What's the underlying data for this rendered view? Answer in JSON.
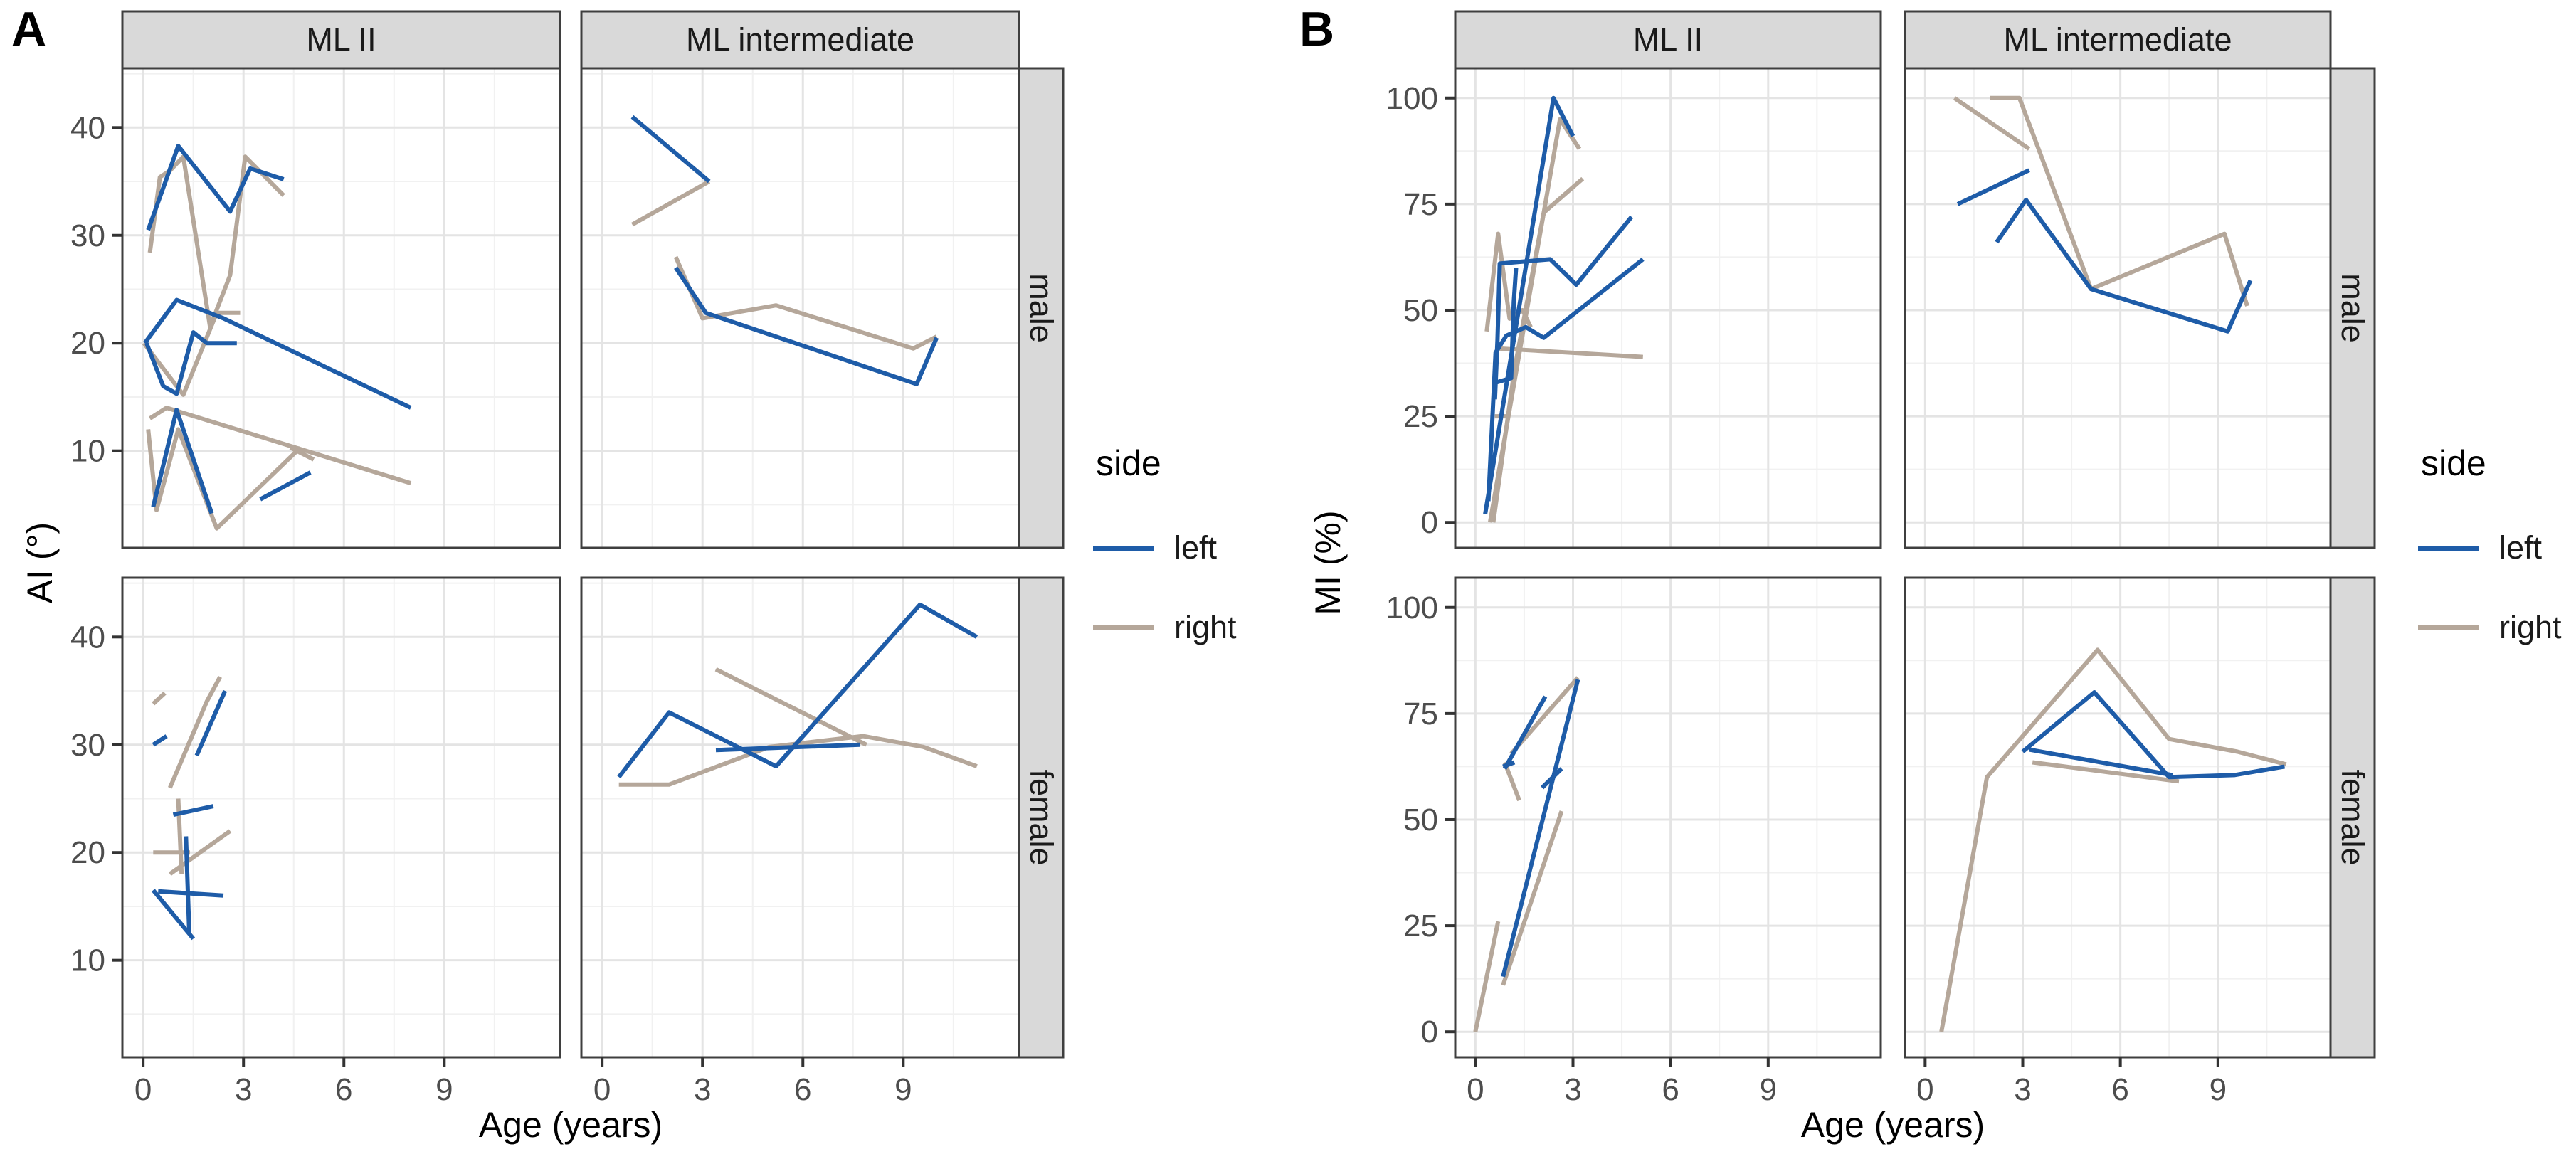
{
  "chart_data": {
    "type": "line",
    "description": "Two faceted longitudinal line-plot panels; each panel is a 2x2 facet grid (columns: ML type, rows: sex) of individual patient trajectories vs age, colored by body side",
    "legend": {
      "title": "side",
      "items": [
        {
          "label": "left",
          "color": "#1e5ca8"
        },
        {
          "label": "right",
          "color": "#b5a79a"
        }
      ]
    },
    "colors": {
      "strip_bg": "#d9d9d9",
      "strip_border": "#3f3f3f",
      "panel_border": "#3f3f3f",
      "grid_major": "#e4e4e4",
      "grid_minor": "#f1f1f1",
      "tick_mark": "#333333",
      "tick_label": "#4d4d4d",
      "strip_text": "#1a1a1a"
    },
    "panels": [
      {
        "letter": "A",
        "y_label": "AI (°)",
        "x_label": "Age (years)",
        "col_facets": [
          "ML II",
          "ML intermediate"
        ],
        "row_facets": [
          "male",
          "female"
        ],
        "x_ticks": [
          0,
          3,
          6,
          9
        ],
        "y_ticks": [
          10,
          20,
          30,
          40
        ],
        "x_minor": [
          1.5,
          4.5,
          7.5,
          10.5
        ],
        "y_minor": [
          5,
          15,
          25,
          35,
          45
        ],
        "x_domain": [
          -0.62,
          12.46
        ],
        "y_domain": [
          1,
          45.5
        ],
        "facets": {
          "ML II|male": {
            "left": [
              [
                [
                  0.15,
                  30.5
                ],
                [
                  1.05,
                  38.3
                ],
                [
                  2.6,
                  32.2
                ],
                [
                  3.2,
                  36.2
                ],
                [
                  4.2,
                  35.2
                ]
              ],
              [
                [
                  0.05,
                  20
                ],
                [
                  1.0,
                  24
                ],
                [
                  2.4,
                  22.3
                ],
                [
                  8.0,
                  14
                ]
              ],
              [
                [
                  0.1,
                  20
                ],
                [
                  0.6,
                  16
                ],
                [
                  1.0,
                  15.3
                ],
                [
                  1.5,
                  21
                ],
                [
                  1.9,
                  20
                ],
                [
                  2.8,
                  20
                ]
              ],
              [
                [
                  0.3,
                  4.8
                ],
                [
                  1.0,
                  13.8
                ],
                [
                  2.05,
                  4.2
                ]
              ],
              [
                [
                  3.5,
                  5.5
                ],
                [
                  5.0,
                  8
                ]
              ]
            ],
            "right": [
              [
                [
                  0.2,
                  28.4
                ],
                [
                  0.5,
                  35.4
                ],
                [
                  0.8,
                  36
                ],
                [
                  1.2,
                  37.3
                ],
                [
                  2.0,
                  21.5
                ],
                [
                  2.6,
                  26.3
                ],
                [
                  3.05,
                  37.3
                ],
                [
                  4.2,
                  33.7
                ]
              ],
              [
                [
                  0.02,
                  20
                ],
                [
                  1.2,
                  15.2
                ],
                [
                  2.2,
                  22.8
                ],
                [
                  2.9,
                  22.8
                ]
              ],
              [
                [
                  0.2,
                  13
                ],
                [
                  0.7,
                  14
                ],
                [
                  8.0,
                  7
                ]
              ],
              [
                [
                  0.15,
                  12
                ],
                [
                  0.4,
                  4.5
                ],
                [
                  1.05,
                  12
                ],
                [
                  2.2,
                  2.8
                ],
                [
                  4.7,
                  10.3
                ]
              ],
              [
                [
                  4.4,
                  10.3
                ],
                [
                  5.1,
                  9.2
                ]
              ]
            ]
          },
          "ML intermediate|male": {
            "left": [
              [
                [
                  0.9,
                  41
                ],
                [
                  3.2,
                  35
                ]
              ],
              [
                [
                  2.2,
                  27
                ],
                [
                  3.1,
                  22.8
                ],
                [
                  9.4,
                  16.2
                ],
                [
                  10.0,
                  20.5
                ]
              ]
            ],
            "right": [
              [
                [
                  0.9,
                  31
                ],
                [
                  3.2,
                  35
                ]
              ],
              [
                [
                  2.2,
                  28
                ],
                [
                  3.0,
                  22.3
                ],
                [
                  5.2,
                  23.5
                ],
                [
                  9.3,
                  19.5
                ],
                [
                  10.0,
                  20.6
                ]
              ]
            ]
          },
          "ML II|female": {
            "left": [
              [
                [
                  0.3,
                  30
                ],
                [
                  0.7,
                  30.8
                ]
              ],
              [
                [
                  1.6,
                  29
                ],
                [
                  2.45,
                  35
                ]
              ],
              [
                [
                  0.9,
                  23.5
                ],
                [
                  2.1,
                  24.3
                ]
              ],
              [
                [
                  1.28,
                  21.5
                ],
                [
                  1.38,
                  12.5
                ]
              ],
              [
                [
                  0.45,
                  16.4
                ],
                [
                  2.4,
                  16
                ]
              ],
              [
                [
                  0.3,
                  16.5
                ],
                [
                  1.5,
                  12
                ]
              ]
            ],
            "right": [
              [
                [
                  0.3,
                  33.8
                ],
                [
                  0.65,
                  34.8
                ]
              ],
              [
                [
                  0.8,
                  26
                ],
                [
                  1.9,
                  34
                ],
                [
                  2.3,
                  36.3
                ]
              ],
              [
                [
                  0.3,
                  20
                ],
                [
                  1.4,
                  20
                ]
              ],
              [
                [
                  1.05,
                  25
                ],
                [
                  1.15,
                  18
                ]
              ],
              [
                [
                  0.8,
                  18
                ],
                [
                  2.6,
                  22
                ]
              ]
            ]
          },
          "ML intermediate|female": {
            "left": [
              [
                [
                  0.5,
                  27
                ],
                [
                  2.0,
                  33
                ],
                [
                  5.2,
                  28
                ],
                [
                  9.5,
                  43
                ],
                [
                  11.2,
                  40
                ]
              ],
              [
                [
                  3.4,
                  29.5
                ],
                [
                  7.7,
                  30
                ]
              ]
            ],
            "right": [
              [
                [
                  0.5,
                  26.3
                ],
                [
                  2.0,
                  26.3
                ],
                [
                  5.0,
                  29.8
                ],
                [
                  7.8,
                  30.8
                ],
                [
                  9.6,
                  29.8
                ],
                [
                  11.2,
                  28
                ]
              ],
              [
                [
                  3.4,
                  37
                ],
                [
                  7.9,
                  30
                ]
              ]
            ]
          }
        }
      },
      {
        "letter": "B",
        "y_label": "MI (%)",
        "x_label": "Age (years)",
        "col_facets": [
          "ML II",
          "ML intermediate"
        ],
        "row_facets": [
          "male",
          "female"
        ],
        "x_ticks": [
          0,
          3,
          6,
          9
        ],
        "y_ticks": [
          0,
          25,
          50,
          75,
          100
        ],
        "x_minor": [
          1.5,
          4.5,
          7.5,
          10.5
        ],
        "y_minor": [
          12.5,
          37.5,
          62.5,
          87.5
        ],
        "x_domain": [
          -0.62,
          12.46
        ],
        "y_domain": [
          -6,
          107
        ],
        "facets": {
          "ML II|male": {
            "left": [
              [
                [
                  0.3,
                  2
                ],
                [
                  2.4,
                  100
                ],
                [
                  3.0,
                  91
                ]
              ],
              [
                [
                  0.6,
                  29
                ],
                [
                  0.68,
                  43
                ],
                [
                  0.75,
                  61
                ],
                [
                  2.3,
                  62
                ],
                [
                  3.1,
                  56
                ],
                [
                  4.8,
                  72
                ]
              ],
              [
                [
                  0.65,
                  33
                ],
                [
                  1.1,
                  34
                ],
                [
                  1.18,
                  52
                ],
                [
                  1.25,
                  60
                ]
              ],
              [
                [
                  0.4,
                  5
                ],
                [
                  0.62,
                  40
                ],
                [
                  0.95,
                  44
                ],
                [
                  1.55,
                  46
                ],
                [
                  2.1,
                  43.5
                ],
                [
                  5.15,
                  62
                ]
              ]
            ],
            "right": [
              [
                [
                  0.45,
                  0
                ],
                [
                  2.6,
                  95
                ],
                [
                  3.2,
                  88
                ]
              ],
              [
                [
                  0.35,
                  45
                ],
                [
                  0.7,
                  68
                ],
                [
                  1.05,
                  48
                ],
                [
                  1.45,
                  50
                ],
                [
                  1.7,
                  46
                ]
              ],
              [
                [
                  0.7,
                  41
                ],
                [
                  5.15,
                  39
                ]
              ],
              [
                [
                  0.55,
                  0
                ],
                [
                  1.2,
                  36
                ],
                [
                  2.1,
                  73
                ],
                [
                  3.3,
                  81
                ]
              ],
              [
                [
                  0.6,
                  25
                ],
                [
                  1.0,
                  25
                ]
              ]
            ]
          },
          "ML intermediate|male": {
            "left": [
              [
                [
                  1.0,
                  75
                ],
                [
                  3.2,
                  83
                ]
              ],
              [
                [
                  2.2,
                  66
                ],
                [
                  3.1,
                  76
                ],
                [
                  5.1,
                  55
                ],
                [
                  9.3,
                  45
                ],
                [
                  10.0,
                  57
                ]
              ]
            ],
            "right": [
              [
                [
                  0.9,
                  100
                ],
                [
                  3.2,
                  88
                ]
              ],
              [
                [
                  2.0,
                  100
                ],
                [
                  2.9,
                  100
                ],
                [
                  5.1,
                  55
                ],
                [
                  9.2,
                  68
                ],
                [
                  9.9,
                  51
                ]
              ]
            ]
          },
          "ML II|female": {
            "left": [
              [
                [
                  0.85,
                  13
                ],
                [
                  3.15,
                  83
                ]
              ],
              [
                [
                  0.9,
                  62
                ],
                [
                  2.15,
                  79
                ]
              ],
              [
                [
                  2.05,
                  57.5
                ],
                [
                  2.65,
                  62
                ]
              ],
              [
                [
                  0.85,
                  62.5
                ],
                [
                  1.2,
                  63.5
                ]
              ]
            ],
            "right": [
              [
                [
                  0.0,
                  0
                ],
                [
                  0.7,
                  26
                ]
              ],
              [
                [
                  0.85,
                  11
                ],
                [
                  2.65,
                  52
                ]
              ],
              [
                [
                  0.9,
                  63.5
                ],
                [
                  1.35,
                  54.5
                ]
              ],
              [
                [
                  1.1,
                  65.5
                ],
                [
                  3.15,
                  83.5
                ]
              ]
            ]
          },
          "ML intermediate|female": {
            "left": [
              [
                [
                  3.0,
                  66
                ],
                [
                  5.2,
                  80
                ],
                [
                  7.5,
                  60
                ],
                [
                  9.5,
                  60.5
                ],
                [
                  11.05,
                  62.5
                ]
              ],
              [
                [
                  3.2,
                  66.5
                ],
                [
                  7.6,
                  60.5
                ]
              ]
            ],
            "right": [
              [
                [
                  0.5,
                  0
                ],
                [
                  1.9,
                  60
                ],
                [
                  5.3,
                  90
                ],
                [
                  7.5,
                  69
                ],
                [
                  9.6,
                  66
                ],
                [
                  11.1,
                  63
                ]
              ],
              [
                [
                  3.3,
                  63.5
                ],
                [
                  7.8,
                  59
                ]
              ]
            ]
          }
        }
      }
    ]
  }
}
